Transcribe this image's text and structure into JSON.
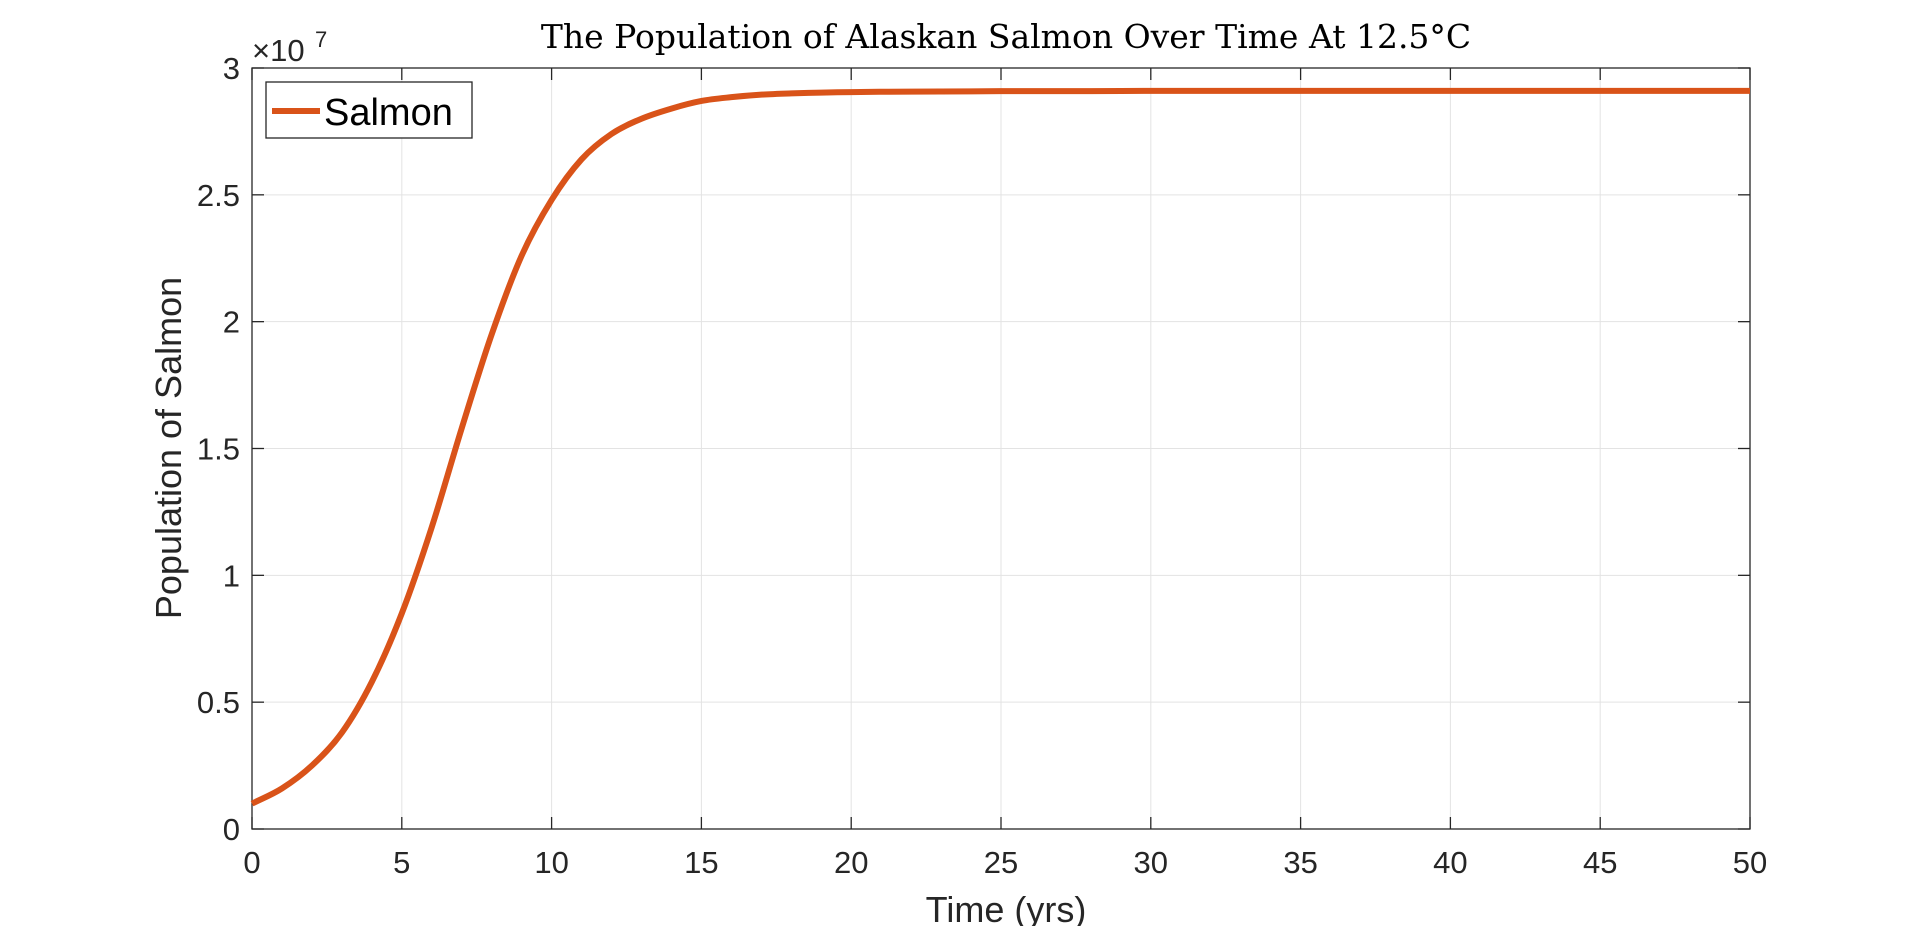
{
  "chart_data": {
    "type": "line",
    "title": "The Population of Alaskan Salmon Over Time At 12.5°C",
    "xlabel": "Time (yrs)",
    "ylabel": "Population of Salmon",
    "xlim": [
      0,
      50
    ],
    "ylim": [
      0,
      30000000
    ],
    "y_exponent_label": {
      "base": "×10",
      "power": "7"
    },
    "x_ticks": [
      "0",
      "5",
      "10",
      "15",
      "20",
      "25",
      "30",
      "35",
      "40",
      "45",
      "50"
    ],
    "y_ticks": [
      "0",
      "0.5",
      "1",
      "1.5",
      "2",
      "2.5",
      "3"
    ],
    "grid": true,
    "legend": {
      "position": "top-left"
    },
    "series": [
      {
        "name": "Salmon",
        "color": "#D95319",
        "x": [
          0,
          1,
          2,
          3,
          4,
          5,
          6,
          7,
          8,
          9,
          10,
          11,
          12,
          13,
          14,
          15,
          16,
          17,
          18,
          19,
          20,
          22,
          24,
          26,
          28,
          30,
          35,
          40,
          45,
          50
        ],
        "y": [
          1000000,
          1600000,
          2500000,
          3800000,
          5800000,
          8500000,
          11900000,
          15800000,
          19500000,
          22600000,
          24800000,
          26400000,
          27400000,
          28000000,
          28400000,
          28700000,
          28850000,
          28950000,
          29000000,
          29030000,
          29050000,
          29070000,
          29080000,
          29090000,
          29090000,
          29100000,
          29100000,
          29100000,
          29100000,
          29100000
        ]
      }
    ]
  }
}
